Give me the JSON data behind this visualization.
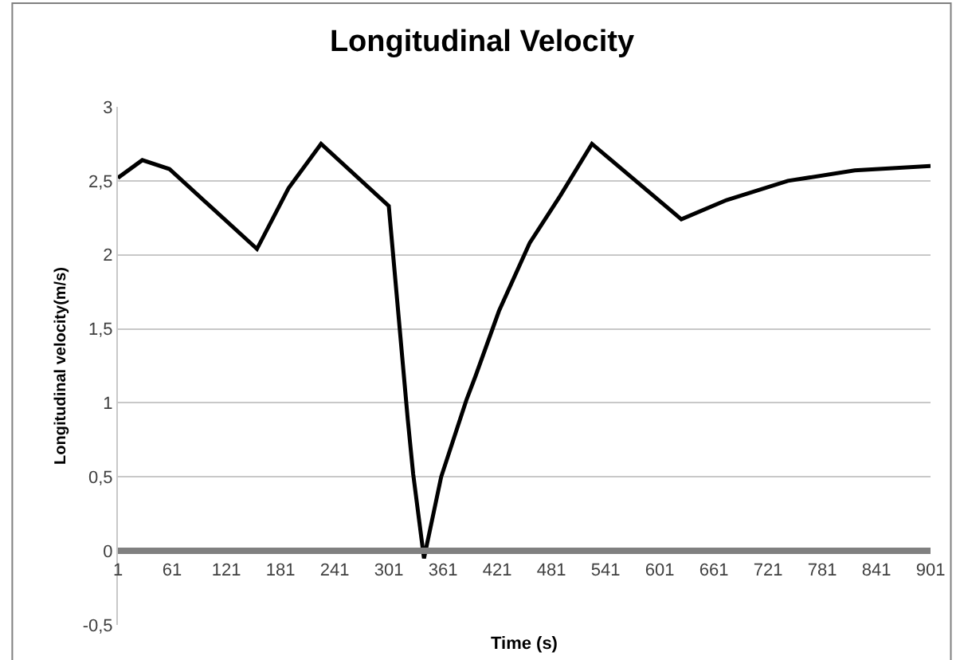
{
  "chart_data": {
    "type": "line",
    "title": "Longitudinal Velocity",
    "xlabel": "Time (s)",
    "ylabel": "Longitudinal velocity(m/s)",
    "x": [
      1,
      28,
      58,
      155,
      190,
      226,
      301,
      322,
      328,
      340,
      359,
      387,
      397,
      423,
      457,
      491,
      526,
      625,
      675,
      743,
      817,
      901
    ],
    "series": [
      {
        "color": "#000000",
        "values": [
          2.52,
          2.64,
          2.58,
          2.04,
          2.45,
          2.75,
          2.33,
          0.89,
          0.52,
          -0.05,
          0.5,
          1.02,
          1.18,
          1.62,
          2.08,
          2.4,
          2.75,
          2.24,
          2.37,
          2.5,
          2.57,
          2.6
        ]
      }
    ],
    "xlim": [
      1,
      901
    ],
    "xticks": [
      1,
      61,
      121,
      181,
      241,
      301,
      361,
      421,
      481,
      541,
      601,
      661,
      721,
      781,
      841,
      901
    ],
    "ylim": [
      -0.5,
      3
    ],
    "yticks": [
      {
        "value": -0.5,
        "label": "-0,5"
      },
      0,
      {
        "value": 0.5,
        "label": "0,5"
      },
      1,
      {
        "value": 1.5,
        "label": "1,5"
      },
      2,
      {
        "value": 2.5,
        "label": "2,5"
      },
      3
    ],
    "grid": "y",
    "legend": false,
    "marker": "none",
    "line_style": "solid"
  }
}
